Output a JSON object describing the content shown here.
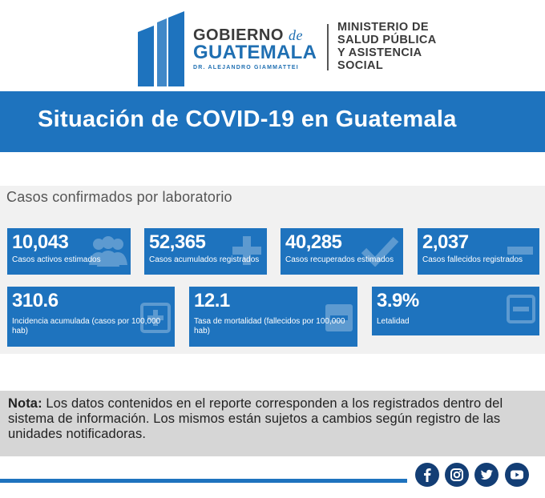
{
  "header": {
    "gobierno_line1": "GOBIERNO",
    "gobierno_de": "de",
    "gobierno_line2": "GUATEMALA",
    "gobierno_line3": "DR. ALEJANDRO GIAMMATTEI",
    "ministry_lines": [
      "MINISTERIO DE",
      "SALUD PÚBLICA",
      "Y ASISTENCIA",
      "SOCIAL"
    ]
  },
  "banner": {
    "title": "Situación de COVID-19 en Guatemala"
  },
  "panel": {
    "title": "Casos confirmados por laboratorio",
    "cards_row1": [
      {
        "value": "10,043",
        "label": "Casos activos estimados",
        "icon": "people-icon"
      },
      {
        "value": "52,365",
        "label": "Casos acumulados registrados",
        "icon": "plus-icon"
      },
      {
        "value": "40,285",
        "label": "Casos recuperados estimados",
        "icon": "check-icon"
      },
      {
        "value": "2,037",
        "label": "Casos fallecidos registrados",
        "icon": "minus-icon"
      }
    ],
    "cards_row2": [
      {
        "value": "310.6",
        "label": "Incidencia acumulada (casos por 100,000 hab)",
        "icon": "plus-square-icon"
      },
      {
        "value": "12.1",
        "label": "Tasa de mortalidad (fallecidos por 100,000 hab)",
        "icon": "minus-square-icon"
      },
      {
        "value": "3.9%",
        "label": "Letalidad",
        "icon": "minus-square-outline-icon"
      }
    ]
  },
  "nota": {
    "label": "Nota:",
    "text": " Los datos contenidos en el reporte corresponden a los registrados dentro del sistema de información. Los mismos están sujetos a cambios según registro de las unidades notificadoras."
  },
  "social": [
    "facebook-icon",
    "instagram-icon",
    "twitter-icon",
    "youtube-icon"
  ],
  "colors": {
    "primary": "#1e73be",
    "dark_blue": "#133e75",
    "panel_bg": "#f1f1f1",
    "nota_bg": "#d6d6d6"
  }
}
